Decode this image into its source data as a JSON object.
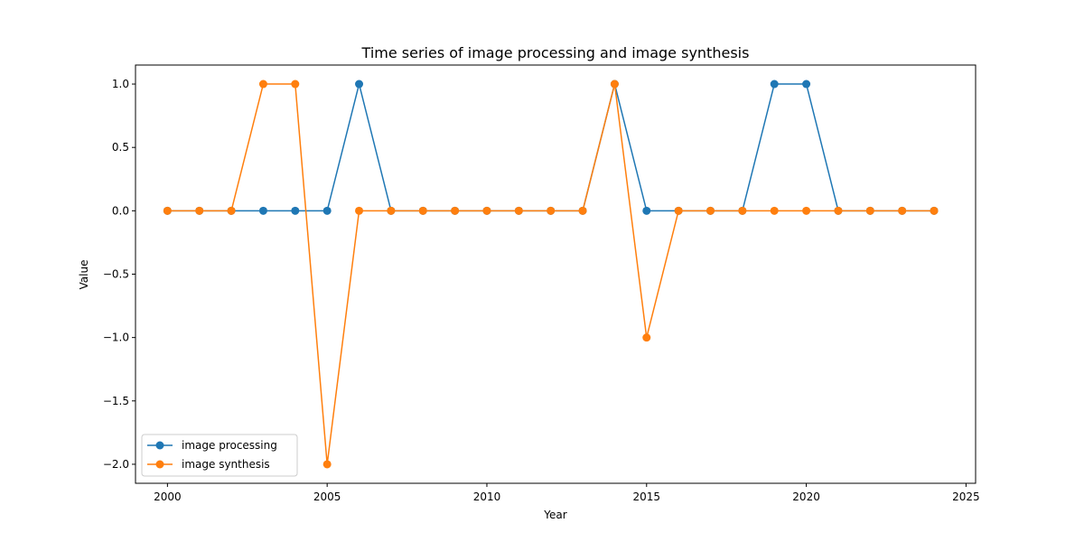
{
  "chart_data": {
    "type": "line",
    "title": "Time series of image processing and image synthesis",
    "xlabel": "Year",
    "ylabel": "Value",
    "x": [
      2000,
      2001,
      2002,
      2003,
      2004,
      2005,
      2006,
      2007,
      2008,
      2009,
      2010,
      2011,
      2012,
      2013,
      2014,
      2015,
      2016,
      2017,
      2018,
      2019,
      2020,
      2021,
      2022,
      2023,
      2024
    ],
    "xlim": [
      1999.0,
      2025.3
    ],
    "ylim": [
      -2.15,
      1.15
    ],
    "xticks": [
      2000,
      2005,
      2010,
      2015,
      2020,
      2025
    ],
    "xtick_labels": [
      "2000",
      "2005",
      "2010",
      "2015",
      "2020",
      "2025"
    ],
    "yticks": [
      1.0,
      0.5,
      0.0,
      -0.5,
      -1.0,
      -1.5,
      -2.0
    ],
    "ytick_labels": [
      "1.0",
      "0.5",
      "0.0",
      "−0.5",
      "−1.0",
      "−1.5",
      "−2.0"
    ],
    "grid": false,
    "legend_position": "lower-left",
    "series": [
      {
        "name": "image processing",
        "color": "#1f77b4",
        "marker": "circle",
        "values": [
          0,
          0,
          0,
          0,
          0,
          0,
          1,
          0,
          0,
          0,
          0,
          0,
          0,
          0,
          1,
          0,
          0,
          0,
          0,
          1,
          1,
          0,
          0,
          0,
          0
        ]
      },
      {
        "name": "image synthesis",
        "color": "#ff7f0e",
        "marker": "circle",
        "values": [
          0,
          0,
          0,
          1,
          1,
          -2,
          0,
          0,
          0,
          0,
          0,
          0,
          0,
          0,
          1,
          -1,
          0,
          0,
          0,
          0,
          0,
          0,
          0,
          0,
          0
        ]
      }
    ]
  }
}
